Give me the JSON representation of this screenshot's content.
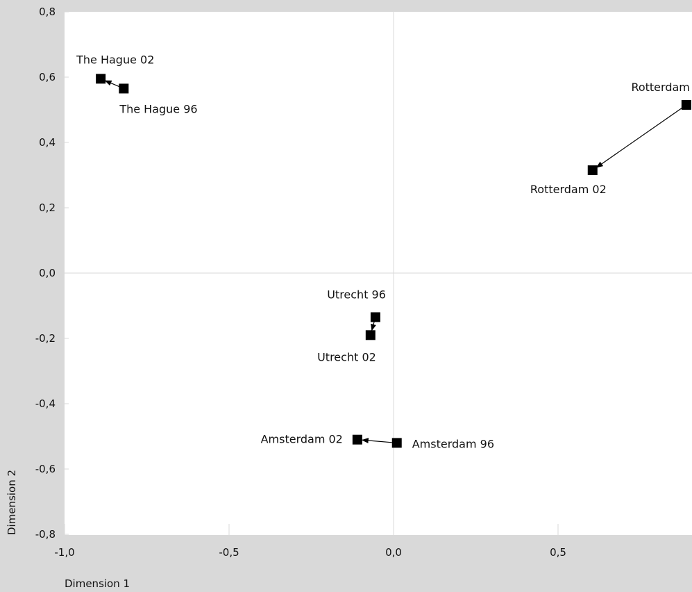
{
  "chart_data": {
    "type": "scatter",
    "title": "",
    "xlabel": "Dimension 1",
    "ylabel": "Dimension 2",
    "xlim": [
      -1.0,
      0.9
    ],
    "ylim": [
      -0.8,
      0.8
    ],
    "x_ticks": [
      -1.0,
      -0.5,
      0.0,
      0.5
    ],
    "x_tick_labels": [
      "-1,0",
      "-0,5",
      "0,0",
      "0,5"
    ],
    "y_ticks": [
      0.8,
      0.6,
      0.4,
      0.2,
      0.0,
      -0.2,
      -0.4,
      -0.6,
      -0.8
    ],
    "y_tick_labels": [
      "0,8",
      "0,6",
      "0,4",
      "0,2",
      "0,0",
      "-0,2",
      "-0,4",
      "-0,6",
      "-0,8"
    ],
    "grid": "zero lines only",
    "points": [
      {
        "label": "The Hague 02",
        "x": -0.89,
        "y": 0.595
      },
      {
        "label": "The Hague 96",
        "x": -0.82,
        "y": 0.565
      },
      {
        "label": "Rotterdam",
        "x": 0.89,
        "y": 0.515
      },
      {
        "label": "Rotterdam 02",
        "x": 0.605,
        "y": 0.315
      },
      {
        "label": "Utrecht 96",
        "x": -0.055,
        "y": -0.135
      },
      {
        "label": "Utrecht 02",
        "x": -0.07,
        "y": -0.19
      },
      {
        "label": "Amsterdam 02",
        "x": -0.11,
        "y": -0.51
      },
      {
        "label": "Amsterdam 96",
        "x": 0.01,
        "y": -0.52
      }
    ],
    "arrows": [
      {
        "from": "The Hague 96",
        "to": "The Hague 02"
      },
      {
        "from": "Rotterdam",
        "to": "Rotterdam 02"
      },
      {
        "from": "Utrecht 96",
        "to": "Utrecht 02"
      },
      {
        "from": "Amsterdam 96",
        "to": "Amsterdam 02"
      }
    ]
  }
}
